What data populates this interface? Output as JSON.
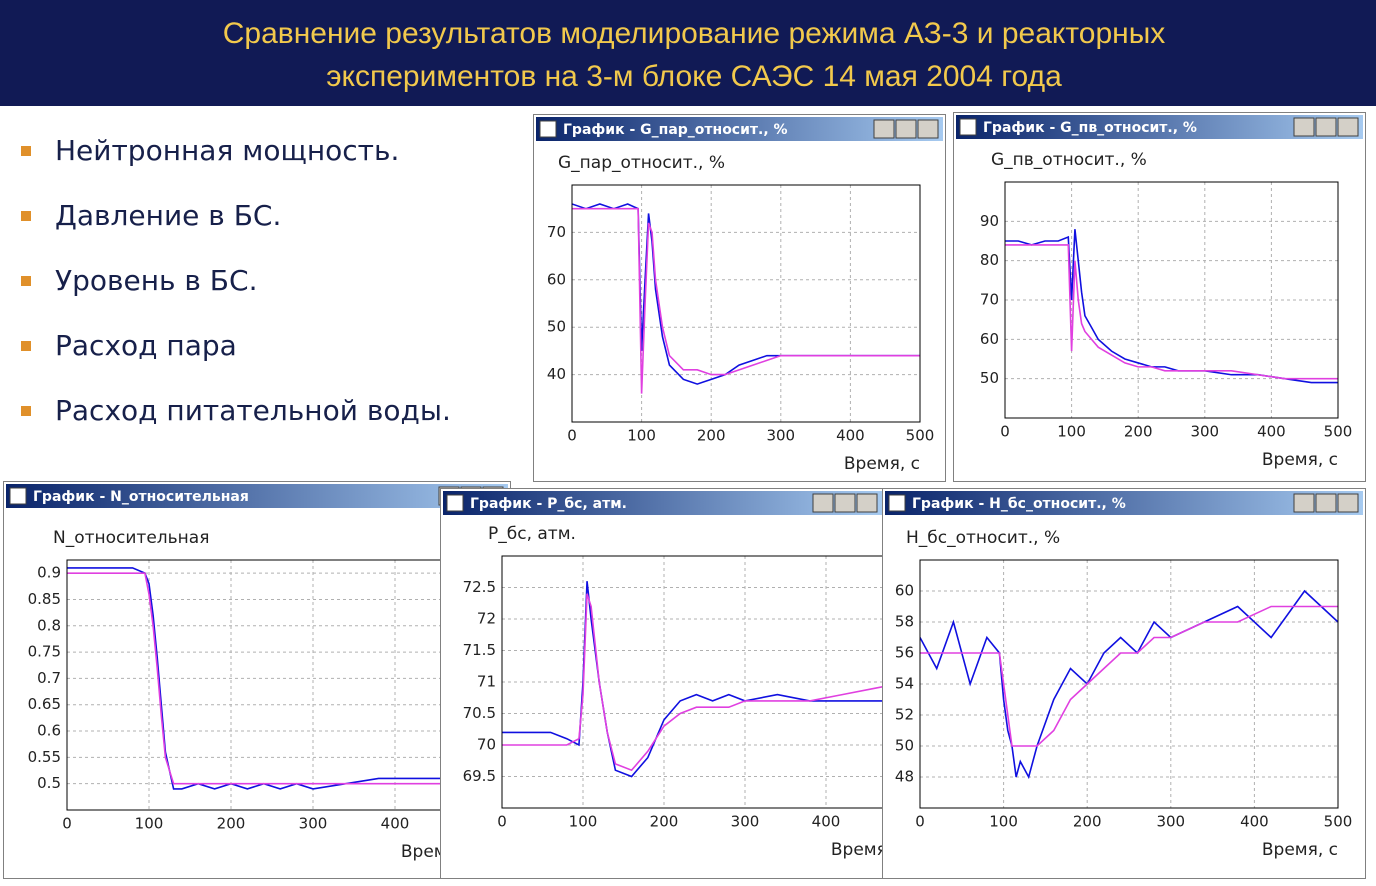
{
  "header": {
    "title_lines": [
      "Сравнение результатов моделирование режима АЗ-3  и реакторных",
      "экспериментов на 3-м блоке САЭС 14 мая 2004 года"
    ]
  },
  "bullets": [
    "Нейтронная мощность.",
    "Давление в БС.",
    "Уровень в БС.",
    "Расход пара",
    "Расход питательной воды."
  ],
  "chart_data": [
    {
      "type": "line",
      "window_title": "График -   G_пар_относит.,  %",
      "ylabel": "G_пар_относит.,  %",
      "xlabel": "Время, с",
      "grid": true,
      "x": [
        0,
        20,
        40,
        60,
        80,
        95,
        100,
        105,
        110,
        115,
        120,
        130,
        140,
        160,
        180,
        200,
        220,
        240,
        260,
        280,
        300,
        340,
        380,
        420,
        460,
        500
      ],
      "xlim": [
        0,
        500
      ],
      "xticks": [
        0,
        100,
        200,
        300,
        400,
        500
      ],
      "ylim": [
        30,
        80
      ],
      "yticks": [
        40,
        50,
        60,
        70
      ],
      "series": [
        {
          "color": "#1010e0",
          "values": [
            76,
            75,
            76,
            75,
            76,
            75,
            45,
            60,
            74,
            68,
            58,
            48,
            42,
            39,
            38,
            39,
            40,
            42,
            43,
            44,
            44,
            44,
            44,
            44,
            44,
            44
          ]
        },
        {
          "color": "#e040e0",
          "values": [
            75,
            75,
            75,
            75,
            75,
            75,
            36,
            55,
            72,
            70,
            60,
            50,
            44,
            41,
            41,
            40,
            40,
            41,
            42,
            43,
            44,
            44,
            44,
            44,
            44,
            44
          ]
        }
      ]
    },
    {
      "type": "line",
      "window_title": "График -   G_пв_относит.,  %",
      "ylabel": "G_пв_относит.,  %",
      "xlabel": "Время, с",
      "grid": true,
      "x": [
        0,
        20,
        40,
        60,
        80,
        95,
        100,
        105,
        110,
        115,
        120,
        130,
        140,
        160,
        180,
        200,
        220,
        240,
        260,
        280,
        300,
        340,
        380,
        420,
        460,
        500
      ],
      "xlim": [
        0,
        500
      ],
      "xticks": [
        0,
        100,
        200,
        300,
        400,
        500
      ],
      "ylim": [
        40,
        100
      ],
      "yticks": [
        50,
        60,
        70,
        80,
        90
      ],
      "series": [
        {
          "color": "#1010e0",
          "values": [
            85,
            85,
            84,
            85,
            85,
            86,
            70,
            88,
            80,
            72,
            66,
            63,
            60,
            57,
            55,
            54,
            53,
            53,
            52,
            52,
            52,
            51,
            51,
            50,
            49,
            49
          ]
        },
        {
          "color": "#e040e0",
          "values": [
            84,
            84,
            84,
            84,
            84,
            84,
            57,
            80,
            70,
            64,
            62,
            60,
            58,
            56,
            54,
            53,
            53,
            52,
            52,
            52,
            52,
            52,
            51,
            50,
            50,
            50
          ]
        }
      ]
    },
    {
      "type": "line",
      "window_title": "График -    N_относительная",
      "ylabel": "N_относительная",
      "xlabel": "Время, с",
      "grid": true,
      "x": [
        0,
        20,
        40,
        60,
        80,
        95,
        100,
        105,
        110,
        115,
        120,
        130,
        140,
        160,
        180,
        200,
        220,
        240,
        260,
        280,
        300,
        340,
        380,
        420,
        460,
        500
      ],
      "xlim": [
        0,
        500
      ],
      "xticks": [
        0,
        100,
        200,
        300,
        400
      ],
      "ylim": [
        0.45,
        0.925
      ],
      "yticks": [
        0.5,
        0.55,
        0.6,
        0.65,
        0.7,
        0.75,
        0.8,
        0.85,
        0.9
      ],
      "series": [
        {
          "color": "#1010e0",
          "values": [
            0.91,
            0.91,
            0.91,
            0.91,
            0.91,
            0.9,
            0.88,
            0.82,
            0.74,
            0.65,
            0.56,
            0.49,
            0.49,
            0.5,
            0.49,
            0.5,
            0.49,
            0.5,
            0.49,
            0.5,
            0.49,
            0.5,
            0.51,
            0.51,
            0.51,
            0.51
          ]
        },
        {
          "color": "#e040e0",
          "values": [
            0.9,
            0.9,
            0.9,
            0.9,
            0.9,
            0.9,
            0.86,
            0.8,
            0.72,
            0.63,
            0.55,
            0.5,
            0.5,
            0.5,
            0.5,
            0.5,
            0.5,
            0.5,
            0.5,
            0.5,
            0.5,
            0.5,
            0.5,
            0.5,
            0.5,
            0.5
          ]
        }
      ]
    },
    {
      "type": "line",
      "window_title": "График -   P_бс, атм.",
      "ylabel": "P_бс, атм.",
      "xlabel": "Время, с",
      "grid": true,
      "x": [
        0,
        20,
        40,
        60,
        80,
        95,
        100,
        105,
        110,
        115,
        120,
        130,
        140,
        160,
        180,
        200,
        220,
        240,
        260,
        280,
        300,
        340,
        380,
        420,
        460,
        500
      ],
      "xlim": [
        0,
        500
      ],
      "xticks": [
        0,
        100,
        200,
        300,
        400
      ],
      "ylim": [
        69,
        73
      ],
      "yticks": [
        69.5,
        70,
        70.5,
        71,
        71.5,
        72,
        72.5
      ],
      "series": [
        {
          "color": "#1010e0",
          "values": [
            70.2,
            70.2,
            70.2,
            70.2,
            70.1,
            70.0,
            71.0,
            72.6,
            72.0,
            71.5,
            71.0,
            70.2,
            69.6,
            69.5,
            69.8,
            70.4,
            70.7,
            70.8,
            70.7,
            70.8,
            70.7,
            70.8,
            70.7,
            70.7,
            70.7,
            70.7
          ]
        },
        {
          "color": "#e040e0",
          "values": [
            70.0,
            70.0,
            70.0,
            70.0,
            70.0,
            70.1,
            70.8,
            72.4,
            72.2,
            71.6,
            71.0,
            70.2,
            69.7,
            69.6,
            69.9,
            70.3,
            70.5,
            70.6,
            70.6,
            70.6,
            70.7,
            70.7,
            70.7,
            70.8,
            70.9,
            71.0
          ]
        }
      ]
    },
    {
      "type": "line",
      "window_title": "График -   H_бс_относит., %",
      "ylabel": "H_бс_относит.,  %",
      "xlabel": "Время, с",
      "grid": true,
      "x": [
        0,
        20,
        40,
        60,
        80,
        95,
        100,
        105,
        110,
        115,
        120,
        130,
        140,
        160,
        180,
        200,
        220,
        240,
        260,
        280,
        300,
        340,
        380,
        420,
        460,
        500
      ],
      "xlim": [
        0,
        500
      ],
      "xticks": [
        0,
        100,
        200,
        300,
        400,
        500
      ],
      "ylim": [
        46,
        62
      ],
      "yticks": [
        48,
        50,
        52,
        54,
        56,
        58,
        60
      ],
      "series": [
        {
          "color": "#1010e0",
          "values": [
            57,
            55,
            58,
            54,
            57,
            56,
            53,
            51,
            50,
            48,
            49,
            48,
            50,
            53,
            55,
            54,
            56,
            57,
            56,
            58,
            57,
            58,
            59,
            57,
            60,
            58
          ]
        },
        {
          "color": "#e040e0",
          "values": [
            56,
            56,
            56,
            56,
            56,
            56,
            54,
            52,
            50,
            50,
            50,
            50,
            50,
            51,
            53,
            54,
            55,
            56,
            56,
            57,
            57,
            58,
            58,
            59,
            59,
            59
          ]
        }
      ]
    }
  ]
}
